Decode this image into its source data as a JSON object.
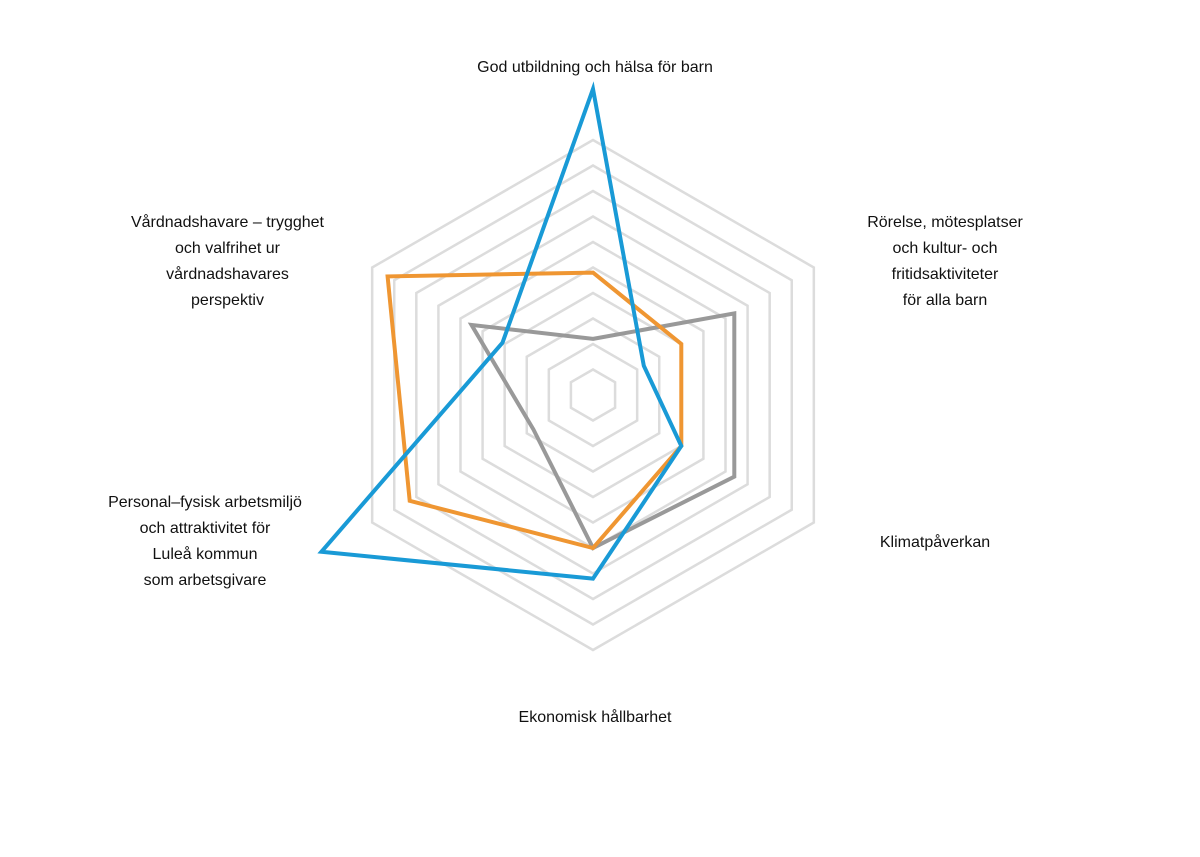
{
  "chart_data": {
    "type": "radar",
    "title": "",
    "axes": [
      "God utbildning och hälsa för barn",
      "Rörelse, mötesplatser\noch kultur- och\nfritidsaktiviteter\nför alla barn",
      "Klimatpåverkan",
      "Ekonomisk hållbarhet",
      "Personal–fysisk arbetsmiljö\noch attraktivitet för\nLuleå kommun\nsom arbetsgivare",
      "Vårdnadshavare – trygghet\noch valfrihet ur\nvårdnadshavares\nperspektiv"
    ],
    "scale": {
      "min": 0,
      "max": 10,
      "rings": 10,
      "grid": true
    },
    "series": [
      {
        "color": "#199ad6",
        "values": [
          12,
          2.3,
          4.0,
          7.2,
          12.3,
          4.1
        ]
      },
      {
        "color": "#ef9632",
        "values": [
          4.8,
          4.0,
          4.0,
          6.0,
          8.3,
          9.3
        ]
      },
      {
        "color": "#999999",
        "values": [
          2.2,
          6.4,
          6.4,
          6.0,
          2.7,
          5.5
        ]
      }
    ],
    "legend": "none"
  },
  "colors": {
    "grid": "#dcdcdc",
    "text": "#111111",
    "background": "#ffffff"
  }
}
